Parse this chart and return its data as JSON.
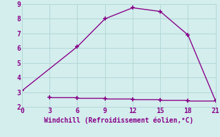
{
  "line1_x": [
    0,
    6,
    9,
    12,
    15,
    18,
    21
  ],
  "line1_y": [
    3.1,
    6.1,
    8.0,
    8.75,
    8.5,
    6.9,
    2.4
  ],
  "line2_x": [
    3,
    6,
    9,
    12,
    15,
    18,
    21
  ],
  "line2_y": [
    2.65,
    2.6,
    2.55,
    2.5,
    2.45,
    2.4,
    2.4
  ],
  "line_color": "#880088",
  "marker": "+",
  "marker_size": 5,
  "marker_linewidth": 1.2,
  "linewidth": 1.0,
  "xlabel": "Windchill (Refroidissement éolien,°C)",
  "xlim": [
    0,
    21
  ],
  "ylim": [
    2,
    9
  ],
  "yticks": [
    2,
    3,
    4,
    5,
    6,
    7,
    8,
    9
  ],
  "xticks": [
    0,
    3,
    6,
    9,
    12,
    15,
    18,
    21
  ],
  "bg_color": "#d4eded",
  "grid_color": "#b0d8d8",
  "xlabel_fontsize": 7,
  "tick_fontsize": 7
}
